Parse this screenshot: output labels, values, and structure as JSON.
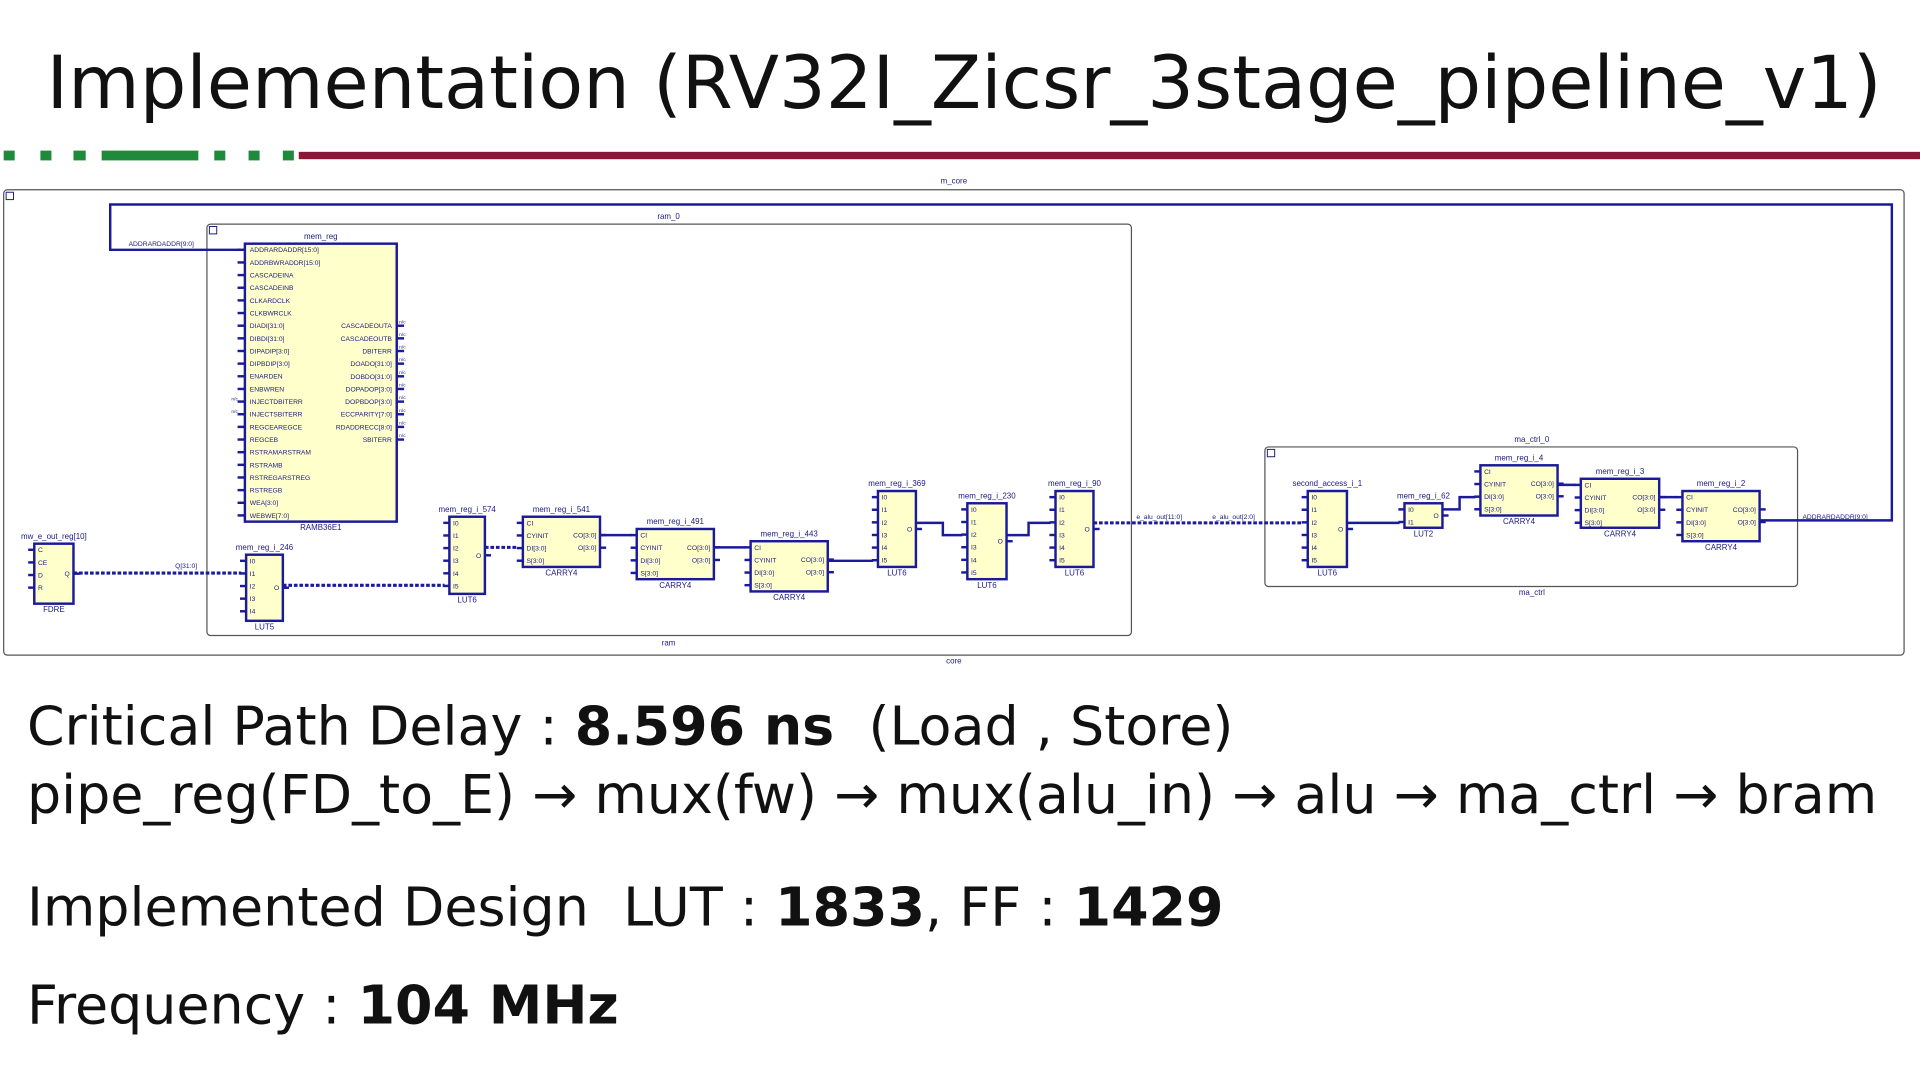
{
  "header": {
    "title": "Implementation (RV32I_Zicsr_3stage_pipeline_v1)"
  },
  "schematic": {
    "core": {
      "top_label": "m_core",
      "bottom_label": "core"
    },
    "ram": {
      "top_label": "ram_0",
      "bottom_label": "ram"
    },
    "ma_ctrl": {
      "top_label": "ma_ctrl_0",
      "bottom_label": "ma_ctrl"
    },
    "nc_label": "n/c",
    "ram_cell": {
      "name": "mem_reg",
      "type": "RAMB36E1",
      "inputs": [
        "ADDRARDADDR[15:0]",
        "ADDRBWRADDR[15:0]",
        "CASCADEINA",
        "CASCADEINB",
        "CLKARDCLK",
        "CLKBWRCLK",
        "DIADI[31:0]",
        "DIBDI[31:0]",
        "DIPADIP[3:0]",
        "DIPBDIP[3:0]",
        "ENARDEN",
        "ENBWREN",
        "INJECTDBITERR",
        "INJECTSBITERR",
        "REGCEAREGCE",
        "REGCEB",
        "RSTRAMARSTRAM",
        "RSTRAMB",
        "RSTREGARSTREG",
        "RSTREGB",
        "WEA[3:0]",
        "WEBWE[7:0]"
      ],
      "outputs": [
        "CASCADEOUTA",
        "CASCADEOUTB",
        "DBITERR",
        "DOADO[31:0]",
        "DOBDO[31:0]",
        "DOPADOP[3:0]",
        "DOPBDOP[3:0]",
        "ECCPARITY[7:0]",
        "RDADDRECC[8:0]",
        "SBITERR"
      ]
    },
    "cells": [
      {
        "name": "mw_e_out_reg[10]",
        "type": "FDRE",
        "inputs": [
          "C",
          "CE",
          "D",
          "R"
        ],
        "outputs": [
          "Q"
        ]
      },
      {
        "name": "mem_reg_i_246",
        "type": "LUT5",
        "inputs": [
          "I0",
          "I1",
          "I2",
          "I3",
          "I4"
        ],
        "outputs": [
          "O"
        ]
      },
      {
        "name": "mem_reg_i_574",
        "type": "LUT6",
        "inputs": [
          "I0",
          "I1",
          "I2",
          "I3",
          "I4",
          "I5"
        ],
        "outputs": [
          "O"
        ]
      },
      {
        "name": "mem_reg_i_541",
        "type": "CARRY4",
        "inputs": [
          "CI",
          "CYINIT",
          "DI[3:0]",
          "S[3:0]"
        ],
        "outputs": [
          "CO[3:0]",
          "O[3:0]"
        ]
      },
      {
        "name": "mem_reg_i_491",
        "type": "CARRY4",
        "inputs": [
          "CI",
          "CYINIT",
          "DI[3:0]",
          "S[3:0]"
        ],
        "outputs": [
          "CO[3:0]",
          "O[3:0]"
        ]
      },
      {
        "name": "mem_reg_i_443",
        "type": "CARRY4",
        "inputs": [
          "CI",
          "CYINIT",
          "DI[3:0]",
          "S[3:0]"
        ],
        "outputs": [
          "CO[3:0]",
          "O[3:0]"
        ]
      },
      {
        "name": "mem_reg_i_369",
        "type": "LUT6",
        "inputs": [
          "I0",
          "I1",
          "I2",
          "I3",
          "I4",
          "I5"
        ],
        "outputs": [
          "O"
        ]
      },
      {
        "name": "mem_reg_i_230",
        "type": "LUT6",
        "inputs": [
          "I0",
          "I1",
          "I2",
          "I3",
          "I4",
          "I5"
        ],
        "outputs": [
          "O"
        ]
      },
      {
        "name": "mem_reg_i_90",
        "type": "LUT6",
        "inputs": [
          "I0",
          "I1",
          "I2",
          "I3",
          "I4",
          "I5"
        ],
        "outputs": [
          "O"
        ]
      },
      {
        "name": "second_access_i_1",
        "type": "LUT6",
        "inputs": [
          "I0",
          "I1",
          "I2",
          "I3",
          "I4",
          "I5"
        ],
        "outputs": [
          "O"
        ]
      },
      {
        "name": "mem_reg_i_62",
        "type": "LUT2",
        "inputs": [
          "I0",
          "I1"
        ],
        "outputs": [
          "O"
        ]
      },
      {
        "name": "mem_reg_i_4",
        "type": "CARRY4",
        "inputs": [
          "CI",
          "CYINIT",
          "DI[3:0]",
          "S[3:0]"
        ],
        "outputs": [
          "CO[3:0]",
          "O[3:0]"
        ]
      },
      {
        "name": "mem_reg_i_3",
        "type": "CARRY4",
        "inputs": [
          "CI",
          "CYINIT",
          "DI[3:0]",
          "S[3:0]"
        ],
        "outputs": [
          "CO[3:0]",
          "O[3:0]"
        ]
      },
      {
        "name": "mem_reg_i_2",
        "type": "CARRY4",
        "inputs": [
          "CI",
          "CYINIT",
          "DI[3:0]",
          "S[3:0]"
        ],
        "outputs": [
          "CO[3:0]",
          "O[3:0]"
        ]
      }
    ],
    "nets": [
      "ADDRARDADDR[9:0]",
      "Q[31:0]",
      "e_alu_out[11:0]",
      "e_alu_out[2:0]",
      "ADDRARDADDR[9:0]"
    ]
  },
  "summary": {
    "delay_label": "Critical Path Delay : ",
    "delay_value": "8.596 ns",
    "delay_note": "  (Load , Store)",
    "path": "pipe_reg(FD_to_E) → mux(fw) → mux(alu_in) → alu → ma_ctrl → bram",
    "design_label": "Implemented Design  LUT : ",
    "lut_value": "1833",
    "ff_label": ", FF : ",
    "ff_value": "1429",
    "freq_label": "Frequency : ",
    "freq_value": "104 MHz"
  }
}
